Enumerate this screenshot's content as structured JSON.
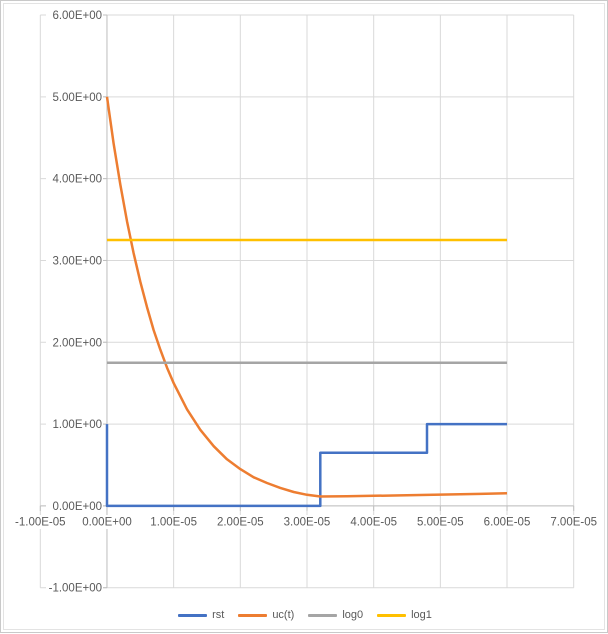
{
  "chart": {
    "title": "",
    "background": "#FFFFFF",
    "border_color": "#C9C9C9",
    "grid_color": "#D9D9D9",
    "axis_color": "#BFBFBF",
    "label_color": "#595959",
    "x_axis": {
      "ticks": [
        -1e-05,
        0,
        1e-05,
        2e-05,
        3e-05,
        4e-05,
        5e-05,
        6e-05,
        7e-05
      ],
      "tick_labels": [
        "-1.00E-05",
        "0.00E+00",
        "1.00E-05",
        "2.00E-05",
        "3.00E-05",
        "4.00E-05",
        "5.00E-05",
        "6.00E-05",
        "7.00E-05"
      ]
    },
    "y_axis": {
      "ticks": [
        6,
        5,
        4,
        3,
        2,
        1,
        0,
        -1
      ],
      "tick_labels": [
        "6.00E+00",
        "5.00E+00",
        "4.00E+00",
        "3.00E+00",
        "2.00E+00",
        "1.00E+00",
        "0.00E+00",
        "-1.00E+00"
      ]
    }
  },
  "chart_data": {
    "type": "line",
    "title": "",
    "xlabel": "",
    "ylabel": "",
    "xlim": [
      -1e-05,
      7e-05
    ],
    "ylim": [
      -1,
      6
    ],
    "grid": true,
    "legend_position": "bottom",
    "series": [
      {
        "name": "rst",
        "color": "#4472C4",
        "points": [
          [
            0,
            1
          ],
          [
            0,
            0
          ],
          [
            3.2e-05,
            0
          ],
          [
            3.2e-05,
            0.65
          ],
          [
            4.8e-05,
            0.65
          ],
          [
            4.8e-05,
            1
          ],
          [
            6e-05,
            1
          ]
        ]
      },
      {
        "name": "uc(t)",
        "color": "#ED7D31",
        "points": [
          [
            0,
            5.0
          ],
          [
            1e-06,
            4.43
          ],
          [
            2e-06,
            3.93
          ],
          [
            3e-06,
            3.48
          ],
          [
            4e-06,
            3.09
          ],
          [
            5e-06,
            2.74
          ],
          [
            6e-06,
            2.43
          ],
          [
            7e-06,
            2.15
          ],
          [
            8e-06,
            1.91
          ],
          [
            9e-06,
            1.69
          ],
          [
            1e-05,
            1.5
          ],
          [
            1.2e-05,
            1.18
          ],
          [
            1.4e-05,
            0.93
          ],
          [
            1.6e-05,
            0.73
          ],
          [
            1.8e-05,
            0.57
          ],
          [
            2e-05,
            0.45
          ],
          [
            2.2e-05,
            0.35
          ],
          [
            2.4e-05,
            0.28
          ],
          [
            2.6e-05,
            0.22
          ],
          [
            2.8e-05,
            0.17
          ],
          [
            3e-05,
            0.135
          ],
          [
            3.2e-05,
            0.115
          ],
          [
            3.6e-05,
            0.118
          ],
          [
            4e-05,
            0.123
          ],
          [
            4.4e-05,
            0.128
          ],
          [
            4.8e-05,
            0.134
          ],
          [
            5.2e-05,
            0.14
          ],
          [
            5.6e-05,
            0.147
          ],
          [
            6e-05,
            0.155
          ]
        ]
      },
      {
        "name": "log0",
        "color": "#A5A5A5",
        "points": [
          [
            0,
            1.75
          ],
          [
            6e-05,
            1.75
          ]
        ]
      },
      {
        "name": "log1",
        "color": "#FFC000",
        "points": [
          [
            0,
            3.25
          ],
          [
            6e-05,
            3.25
          ]
        ]
      }
    ]
  },
  "legend": {
    "items": [
      {
        "label": "rst",
        "color": "#4472C4"
      },
      {
        "label": "uc(t)",
        "color": "#ED7D31"
      },
      {
        "label": "log0",
        "color": "#A5A5A5"
      },
      {
        "label": "log1",
        "color": "#FFC000"
      }
    ]
  }
}
